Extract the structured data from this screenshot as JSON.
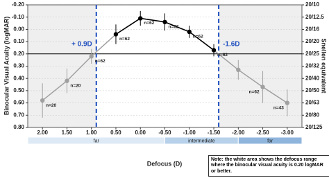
{
  "chart_data": {
    "type": "line",
    "y_label": "Binocular Visual Acuity (logMAR)",
    "y2_label": "Snellen equivalent",
    "x_label": "Defocus (D)",
    "x": [
      2.0,
      1.5,
      1.0,
      0.5,
      0.0,
      -0.5,
      -1.0,
      -1.5,
      -2.0,
      -2.5,
      -3.0
    ],
    "values": [
      0.58,
      0.42,
      0.22,
      0.04,
      -0.09,
      -0.06,
      0.02,
      0.17,
      0.33,
      0.47,
      0.6
    ],
    "errors": [
      0.14,
      0.1,
      0.06,
      0.08,
      0.06,
      0.07,
      0.05,
      0.05,
      0.08,
      0.13,
      0.11
    ],
    "sample_sizes": [
      "n=20",
      "n=20",
      "n=62",
      "n=62",
      "n=62",
      "n=62",
      "n=62",
      "n=62",
      null,
      "n=62",
      "n=43"
    ],
    "color": "#a0a0a0",
    "highlight_color": "#000000",
    "xlim": [
      2.3,
      -3.3
    ],
    "xticks": [
      {
        "value": 2,
        "label": "2.00"
      },
      {
        "value": 1.5,
        "label": "1.50"
      },
      {
        "value": 1,
        "label": "1.00"
      },
      {
        "value": 0.5,
        "label": "0.50"
      },
      {
        "value": 0,
        "label": "0.00"
      },
      {
        "value": -0.5,
        "label": "-0.50"
      },
      {
        "value": -1,
        "label": "-1.00"
      },
      {
        "value": -1.5,
        "label": "-1.50"
      },
      {
        "value": -2,
        "label": "-2.00"
      },
      {
        "value": -2.5,
        "label": "-2.50"
      },
      {
        "value": -3,
        "label": "-3.00"
      }
    ],
    "ylim": [
      -0.2,
      0.8
    ],
    "yticks": [
      {
        "value": -0.2,
        "label": "-0.20"
      },
      {
        "value": -0.1,
        "label": "-0.10"
      },
      {
        "value": 0,
        "label": "0.00"
      },
      {
        "value": 0.1,
        "label": "0.10"
      },
      {
        "value": 0.2,
        "label": "0.20"
      },
      {
        "value": 0.3,
        "label": "0.30"
      },
      {
        "value": 0.4,
        "label": "0.40"
      },
      {
        "value": 0.5,
        "label": "0.50"
      },
      {
        "value": 0.6,
        "label": "0.60"
      },
      {
        "value": 0.7,
        "label": "0.70"
      },
      {
        "value": 0.8,
        "label": "0.80"
      }
    ],
    "y2lim": [
      -0.2,
      0.8
    ],
    "y2ticks": [
      {
        "value": -0.2,
        "label": "20/10"
      },
      {
        "value": -0.1,
        "label": "20/12.5"
      },
      {
        "value": 0,
        "label": "20/16"
      },
      {
        "value": 0.1,
        "label": "20/20"
      },
      {
        "value": 0.2,
        "label": "20/25"
      },
      {
        "value": 0.3,
        "label": "20/32"
      },
      {
        "value": 0.4,
        "label": "20/40"
      },
      {
        "value": 0.5,
        "label": "20/50"
      },
      {
        "value": 0.6,
        "label": "20/63"
      },
      {
        "value": 0.7,
        "label": "20/80"
      },
      {
        "value": 0.8,
        "label": "20/125"
      }
    ],
    "threshold": 0.2,
    "range_lines": [
      {
        "value": 0.9,
        "label": "+ 0.9D"
      },
      {
        "value": -1.6,
        "label": "-1.6D"
      }
    ],
    "range_color": "#1f4fbf",
    "bands": [
      {
        "from": 2.3,
        "to": -0.5,
        "label": "far",
        "color": "#ddeaf6"
      },
      {
        "from": -0.5,
        "to": -2.0,
        "label": "intermediate",
        "color": "#b7d1ea"
      },
      {
        "from": -2.0,
        "to": -3.3,
        "label": "far",
        "color": "#8fb5dc"
      }
    ],
    "note": "Note: the white area shows the defocus range where the binocular visual acuity is 0.20 logMAR or better."
  }
}
